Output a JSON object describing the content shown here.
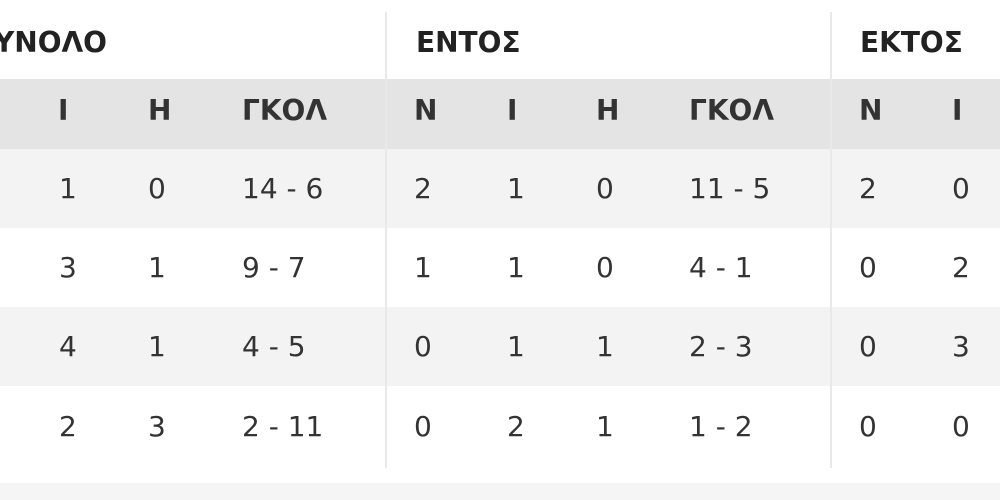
{
  "groups": {
    "total": "ΥΝΟΛΟ",
    "home": "ΕΝΤΟΣ",
    "away": "ΕΚΤΟΣ"
  },
  "headers": {
    "total": [
      "Ι",
      "Η",
      "ΓΚΟΛ"
    ],
    "home": [
      "Ν",
      "Ι",
      "Η",
      "ΓΚΟΛ"
    ],
    "away": [
      "Ν",
      "Ι"
    ]
  },
  "rows": [
    {
      "total": [
        "1",
        "0",
        "14 - 6"
      ],
      "home": [
        "2",
        "1",
        "0",
        "11 - 5"
      ],
      "away": [
        "2",
        "0"
      ]
    },
    {
      "total": [
        "3",
        "1",
        "9 - 7"
      ],
      "home": [
        "1",
        "1",
        "0",
        "4 - 1"
      ],
      "away": [
        "0",
        "2"
      ]
    },
    {
      "total": [
        "4",
        "1",
        "4 - 5"
      ],
      "home": [
        "0",
        "1",
        "1",
        "2 - 3"
      ],
      "away": [
        "0",
        "3"
      ]
    },
    {
      "total": [
        "2",
        "3",
        "2 - 11"
      ],
      "home": [
        "0",
        "2",
        "1",
        "1 - 2"
      ],
      "away": [
        "0",
        "0"
      ]
    }
  ]
}
